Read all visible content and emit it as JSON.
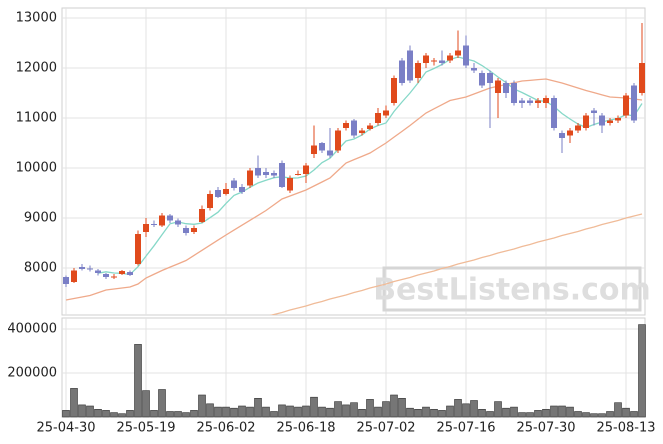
{
  "chart_data": [
    {
      "type": "candlestick",
      "up_color": "#e04a1c",
      "down_color": "#7a7fc6",
      "ylim": [
        7060,
        13200
      ],
      "yticks": [
        8000,
        9000,
        10000,
        11000,
        12000,
        13000
      ],
      "grid": true,
      "watermark": "BestListens.com",
      "open": [
        7820,
        7720,
        8020,
        7990,
        7950,
        7880,
        7820,
        7880,
        7920,
        8080,
        8720,
        8880,
        8850,
        9050,
        8950,
        8800,
        8720,
        8920,
        9200,
        9560,
        9480,
        9750,
        9620,
        9650,
        10000,
        9920,
        9900,
        10100,
        9550,
        9870,
        9880,
        10280,
        10500,
        10350,
        10350,
        10800,
        10950,
        10700,
        10780,
        10900,
        11050,
        11300,
        12150,
        12350,
        11800,
        12100,
        12150,
        12150,
        12150,
        12250,
        12450,
        12000,
        11900,
        11900,
        11500,
        11700,
        11700,
        11350,
        11350,
        11300,
        11300,
        11400,
        10700,
        10650,
        10750,
        10800,
        11150,
        11050,
        10900,
        10950,
        11050,
        11650,
        11500
      ],
      "high": [
        7850,
        8000,
        8080,
        8050,
        7980,
        7900,
        7880,
        7960,
        7950,
        8750,
        9000,
        8950,
        9100,
        9080,
        8990,
        8850,
        8850,
        9250,
        9550,
        9620,
        9700,
        9800,
        9680,
        10000,
        10250,
        10000,
        9950,
        10150,
        9850,
        9950,
        10100,
        10850,
        10520,
        10800,
        10800,
        10950,
        10980,
        10800,
        10900,
        11200,
        11250,
        11850,
        12200,
        12450,
        12150,
        12300,
        12200,
        12350,
        12300,
        12750,
        12650,
        12100,
        11950,
        11950,
        11800,
        11750,
        11750,
        11400,
        11400,
        11400,
        11450,
        11450,
        10750,
        10800,
        10900,
        11100,
        11200,
        11100,
        11000,
        11050,
        11500,
        11700,
        12900
      ],
      "low": [
        7620,
        7700,
        7950,
        7930,
        7850,
        7780,
        7780,
        7860,
        7840,
        8050,
        8620,
        8820,
        8820,
        8900,
        8820,
        8650,
        8680,
        8900,
        9150,
        9400,
        9450,
        9550,
        9480,
        9600,
        9800,
        9800,
        9800,
        9600,
        9500,
        9850,
        9700,
        10200,
        10300,
        10200,
        10300,
        10750,
        10600,
        10650,
        10750,
        10850,
        11000,
        11250,
        11650,
        11700,
        11700,
        12000,
        12050,
        12050,
        12100,
        12200,
        12000,
        11900,
        11600,
        10800,
        11000,
        11400,
        11250,
        11200,
        11250,
        11200,
        11200,
        10750,
        10300,
        10500,
        10700,
        10750,
        10850,
        10700,
        10850,
        10900,
        11000,
        10900,
        11450
      ],
      "close": [
        7680,
        7950,
        7980,
        7970,
        7900,
        7820,
        7830,
        7940,
        7860,
        8680,
        8880,
        8860,
        9050,
        8950,
        8870,
        8700,
        8800,
        9180,
        9480,
        9420,
        9580,
        9600,
        9520,
        9950,
        9850,
        9860,
        9850,
        9620,
        9800,
        9880,
        10050,
        10450,
        10350,
        10250,
        10750,
        10900,
        10650,
        10750,
        10850,
        11100,
        11150,
        11800,
        11700,
        11750,
        12100,
        12250,
        12150,
        12100,
        12250,
        12350,
        12050,
        11950,
        11650,
        11700,
        11750,
        11500,
        11300,
        11300,
        11300,
        11350,
        11400,
        10800,
        10600,
        10750,
        10850,
        11050,
        11100,
        10850,
        10950,
        11000,
        11450,
        10950,
        12100
      ],
      "series": [
        {
          "color": "#86d8c8",
          "values": [
            null,
            null,
            null,
            null,
            7896,
            7924,
            7900,
            7892,
            7870,
            8026,
            8238,
            8444,
            8666,
            8884,
            8922,
            8886,
            8874,
            8900,
            9006,
            9116,
            9292,
            9452,
            9520,
            9614,
            9700,
            9756,
            9806,
            9826,
            9796,
            9802,
            9840,
            9960,
            10106,
            10196,
            10370,
            10540,
            10580,
            10660,
            10780,
            10850,
            10900,
            11130,
            11320,
            11500,
            11700,
            11920,
            11990,
            12070,
            12170,
            12220,
            12180,
            12140,
            12050,
            11940,
            11820,
            11710,
            11580,
            11510,
            11430,
            11350,
            11330,
            11230,
            11090,
            10980,
            10880,
            10810,
            10870,
            10920,
            10960,
            10990,
            11070,
            11040,
            11290
          ]
        },
        {
          "color": "#efa98a",
          "values": [
            7360,
            7390,
            7420,
            7450,
            7505,
            7560,
            7580,
            7600,
            7620,
            7680,
            7800,
            7875,
            7950,
            8017,
            8083,
            8150,
            8252,
            8354,
            8456,
            8558,
            8660,
            8758,
            8856,
            8954,
            9052,
            9150,
            9265,
            9380,
            9440,
            9500,
            9560,
            9640,
            9720,
            9800,
            9950,
            10100,
            10167,
            10233,
            10300,
            10400,
            10500,
            10617,
            10733,
            10850,
            10975,
            11100,
            11183,
            11267,
            11350,
            11385,
            11420,
            11480,
            11540,
            11600,
            11635,
            11670,
            11705,
            11740,
            11753,
            11767,
            11780,
            11740,
            11700,
            11650,
            11600,
            11550,
            11507,
            11463,
            11420,
            11410,
            11400,
            11380,
            11360
          ]
        },
        {
          "color": "#f0bb98",
          "values": [
            null,
            null,
            null,
            null,
            null,
            null,
            null,
            null,
            null,
            null,
            null,
            null,
            null,
            null,
            null,
            null,
            null,
            null,
            null,
            null,
            null,
            null,
            null,
            null,
            6980,
            7030,
            7070,
            7110,
            7160,
            7200,
            7240,
            7290,
            7330,
            7380,
            7420,
            7460,
            7510,
            7550,
            7600,
            7640,
            7680,
            7730,
            7770,
            7810,
            7860,
            7900,
            7940,
            7990,
            8030,
            8080,
            8120,
            8160,
            8210,
            8250,
            8300,
            8340,
            8380,
            8430,
            8470,
            8520,
            8560,
            8600,
            8650,
            8690,
            8730,
            8780,
            8820,
            8870,
            8910,
            8950,
            9000,
            9040,
            9080
          ]
        }
      ]
    },
    {
      "type": "bar",
      "color": "#767676",
      "ylim": [
        0,
        450000
      ],
      "yticks": [
        200000,
        400000
      ],
      "grid": true,
      "categories": [
        "25-04-30",
        null,
        null,
        null,
        null,
        null,
        null,
        null,
        null,
        null,
        "25-05-19",
        null,
        null,
        null,
        null,
        null,
        null,
        null,
        null,
        null,
        "25-06-02",
        null,
        null,
        null,
        null,
        null,
        null,
        null,
        null,
        null,
        "25-06-18",
        null,
        null,
        null,
        null,
        null,
        null,
        null,
        null,
        null,
        "25-07-02",
        null,
        null,
        null,
        null,
        null,
        null,
        null,
        null,
        null,
        "25-07-16",
        null,
        null,
        null,
        null,
        null,
        null,
        null,
        null,
        null,
        "25-07-30",
        null,
        null,
        null,
        null,
        null,
        null,
        null,
        null,
        null,
        "25-08-13",
        null,
        null
      ],
      "values": [
        30000,
        130000,
        55000,
        50000,
        35000,
        30000,
        20000,
        15000,
        30000,
        330000,
        120000,
        30000,
        125000,
        25000,
        25000,
        20000,
        30000,
        100000,
        60000,
        45000,
        45000,
        40000,
        50000,
        45000,
        85000,
        45000,
        25000,
        55000,
        50000,
        45000,
        50000,
        90000,
        45000,
        40000,
        70000,
        55000,
        65000,
        35000,
        80000,
        45000,
        70000,
        100000,
        85000,
        40000,
        35000,
        45000,
        35000,
        30000,
        50000,
        80000,
        60000,
        75000,
        35000,
        25000,
        70000,
        40000,
        45000,
        20000,
        20000,
        30000,
        35000,
        50000,
        50000,
        45000,
        25000,
        20000,
        15000,
        15000,
        25000,
        65000,
        40000,
        25000,
        420000
      ]
    }
  ]
}
